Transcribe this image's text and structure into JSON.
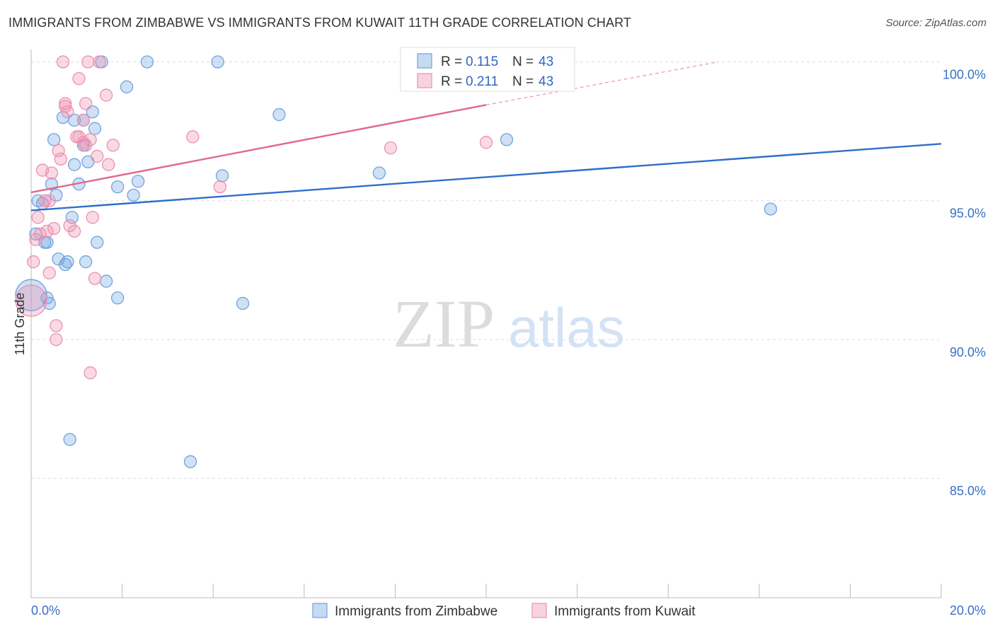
{
  "title": "IMMIGRANTS FROM ZIMBABWE VS IMMIGRANTS FROM KUWAIT 11TH GRADE CORRELATION CHART",
  "source": "Source: ZipAtlas.com",
  "colors": {
    "zimbabwe": "#6fa3e0",
    "kuwait": "#ee8fae",
    "zimbabwe_line": "#2f6ecb",
    "kuwait_line": "#e06790",
    "axis_text": "#3a6fc4",
    "grid": "#dddddd"
  },
  "watermark": {
    "zip": "ZIP",
    "atlas": "atlas"
  },
  "chart_data": {
    "type": "scatter",
    "xlabel": "",
    "ylabel": "11th Grade",
    "xlim": [
      0,
      20
    ],
    "ylim": [
      80.7,
      100.7
    ],
    "x_tick_labels": {
      "left": "0.0%",
      "right": "20.0%"
    },
    "y_ticks": [
      {
        "value": 100,
        "label": "100.0%"
      },
      {
        "value": 95,
        "label": "95.0%"
      },
      {
        "value": 90,
        "label": "90.0%"
      },
      {
        "value": 85,
        "label": "85.0%"
      }
    ],
    "legend": {
      "rows": [
        {
          "series": "zimbabwe",
          "r_label": "R =",
          "r_value": "0.115",
          "n_label": "N =",
          "n_value": "43"
        },
        {
          "series": "kuwait",
          "r_label": "R =",
          "r_value": "0.211",
          "n_label": "N =",
          "n_value": "43"
        }
      ]
    },
    "bottom_legend": [
      {
        "series": "zimbabwe",
        "label": "Immigrants from Zimbabwe"
      },
      {
        "series": "kuwait",
        "label": "Immigrants from Kuwait"
      }
    ],
    "trendlines": [
      {
        "series": "zimbabwe",
        "x0": 0.0,
        "y0": 94.65,
        "x1": 20.0,
        "y1": 97.05,
        "dashed_to": null
      },
      {
        "series": "kuwait",
        "x0": 0.0,
        "y0": 95.3,
        "x1": 10.0,
        "y1": 98.45,
        "dashed_to": {
          "x": 15.1,
          "y": 100.0
        }
      }
    ],
    "series": [
      {
        "name": "Immigrants from Zimbabwe",
        "key": "zimbabwe",
        "points": [
          {
            "x": 0.0,
            "y": 91.6,
            "big": true
          },
          {
            "x": 0.1,
            "y": 93.8
          },
          {
            "x": 0.15,
            "y": 95.0
          },
          {
            "x": 0.25,
            "y": 94.9
          },
          {
            "x": 0.3,
            "y": 93.5
          },
          {
            "x": 0.35,
            "y": 93.5
          },
          {
            "x": 0.35,
            "y": 91.5
          },
          {
            "x": 0.4,
            "y": 91.3
          },
          {
            "x": 0.45,
            "y": 95.6
          },
          {
            "x": 0.5,
            "y": 97.2
          },
          {
            "x": 0.55,
            "y": 95.2
          },
          {
            "x": 0.6,
            "y": 92.9
          },
          {
            "x": 0.7,
            "y": 98.0
          },
          {
            "x": 0.75,
            "y": 92.7
          },
          {
            "x": 0.8,
            "y": 92.8
          },
          {
            "x": 0.85,
            "y": 86.4
          },
          {
            "x": 0.9,
            "y": 94.4
          },
          {
            "x": 0.95,
            "y": 96.3
          },
          {
            "x": 0.95,
            "y": 97.9
          },
          {
            "x": 1.05,
            "y": 95.6
          },
          {
            "x": 1.15,
            "y": 97.0
          },
          {
            "x": 1.15,
            "y": 97.9
          },
          {
            "x": 1.2,
            "y": 92.8
          },
          {
            "x": 1.25,
            "y": 96.4
          },
          {
            "x": 1.35,
            "y": 98.2
          },
          {
            "x": 1.4,
            "y": 97.6
          },
          {
            "x": 1.45,
            "y": 93.5
          },
          {
            "x": 1.55,
            "y": 100.0
          },
          {
            "x": 1.65,
            "y": 92.1
          },
          {
            "x": 1.9,
            "y": 95.5
          },
          {
            "x": 1.9,
            "y": 91.5
          },
          {
            "x": 2.1,
            "y": 99.1
          },
          {
            "x": 2.25,
            "y": 95.2
          },
          {
            "x": 2.35,
            "y": 95.7
          },
          {
            "x": 2.55,
            "y": 100.0
          },
          {
            "x": 3.5,
            "y": 85.6
          },
          {
            "x": 4.1,
            "y": 100.0
          },
          {
            "x": 4.2,
            "y": 95.9
          },
          {
            "x": 4.65,
            "y": 91.3
          },
          {
            "x": 5.45,
            "y": 98.1
          },
          {
            "x": 7.65,
            "y": 96.0
          },
          {
            "x": 10.45,
            "y": 97.2
          },
          {
            "x": 16.25,
            "y": 94.7
          }
        ]
      },
      {
        "name": "Immigrants from Kuwait",
        "key": "kuwait",
        "points": [
          {
            "x": 0.0,
            "y": 91.4,
            "big": true
          },
          {
            "x": 0.05,
            "y": 92.8
          },
          {
            "x": 0.1,
            "y": 93.6
          },
          {
            "x": 0.15,
            "y": 94.4
          },
          {
            "x": 0.2,
            "y": 93.8
          },
          {
            "x": 0.25,
            "y": 96.1
          },
          {
            "x": 0.3,
            "y": 95.0
          },
          {
            "x": 0.35,
            "y": 93.9
          },
          {
            "x": 0.4,
            "y": 92.4
          },
          {
            "x": 0.45,
            "y": 96.0
          },
          {
            "x": 0.5,
            "y": 94.0
          },
          {
            "x": 0.55,
            "y": 90.5
          },
          {
            "x": 0.55,
            "y": 90.0
          },
          {
            "x": 0.6,
            "y": 96.8
          },
          {
            "x": 0.65,
            "y": 96.5
          },
          {
            "x": 0.7,
            "y": 100.0
          },
          {
            "x": 0.75,
            "y": 98.5
          },
          {
            "x": 0.75,
            "y": 98.4
          },
          {
            "x": 0.8,
            "y": 98.2
          },
          {
            "x": 0.85,
            "y": 94.1
          },
          {
            "x": 0.95,
            "y": 93.9
          },
          {
            "x": 1.0,
            "y": 97.3
          },
          {
            "x": 1.05,
            "y": 97.3
          },
          {
            "x": 1.05,
            "y": 99.4
          },
          {
            "x": 1.15,
            "y": 97.1
          },
          {
            "x": 1.15,
            "y": 97.9
          },
          {
            "x": 1.2,
            "y": 98.5
          },
          {
            "x": 1.2,
            "y": 97.0
          },
          {
            "x": 1.25,
            "y": 100.0
          },
          {
            "x": 1.3,
            "y": 97.2
          },
          {
            "x": 1.3,
            "y": 88.8
          },
          {
            "x": 1.35,
            "y": 94.4
          },
          {
            "x": 1.4,
            "y": 92.2
          },
          {
            "x": 1.45,
            "y": 96.6
          },
          {
            "x": 1.5,
            "y": 100.0
          },
          {
            "x": 1.65,
            "y": 98.8
          },
          {
            "x": 1.7,
            "y": 96.3
          },
          {
            "x": 1.8,
            "y": 97.0
          },
          {
            "x": 3.55,
            "y": 97.3
          },
          {
            "x": 4.15,
            "y": 95.5
          },
          {
            "x": 7.9,
            "y": 96.9
          },
          {
            "x": 10.0,
            "y": 97.1
          },
          {
            "x": 0.4,
            "y": 95.0
          }
        ]
      }
    ]
  }
}
